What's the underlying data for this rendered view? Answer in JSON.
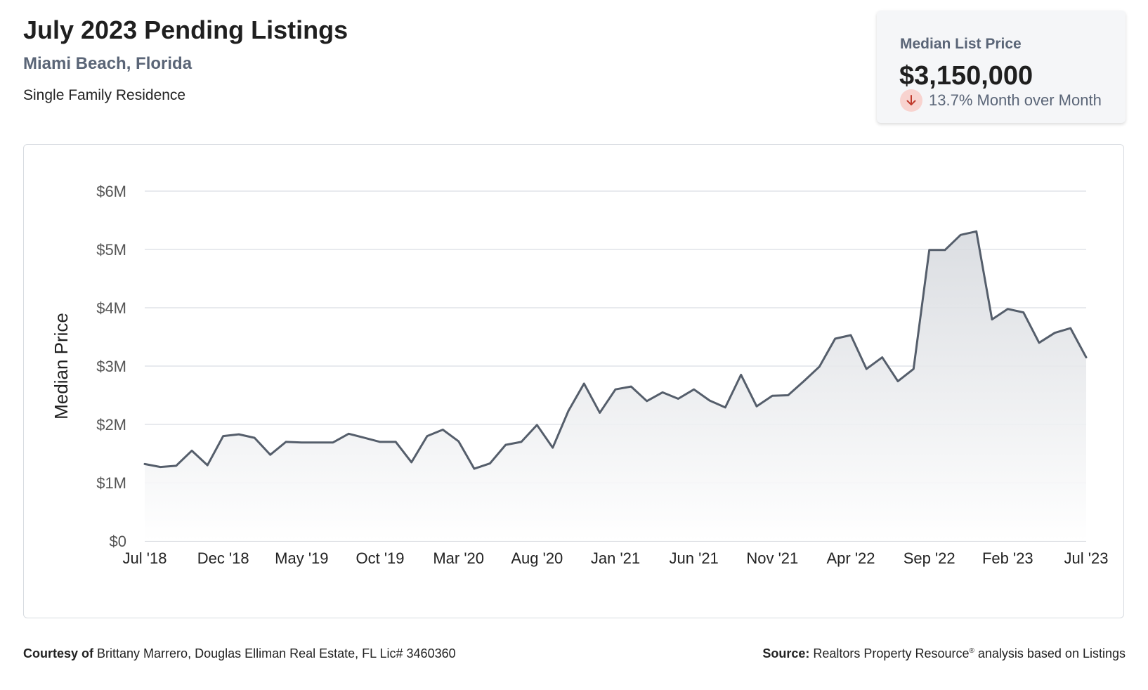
{
  "header": {
    "title": "July 2023 Pending Listings",
    "location": "Miami Beach, Florida",
    "property_type": "Single Family Residence"
  },
  "summary_card": {
    "label": "Median List Price",
    "value": "$3,150,000",
    "change": "13.7% Month over Month",
    "direction_icon": "arrow-down-icon",
    "down_color": "#c0392b"
  },
  "footer": {
    "courtesy_label": "Courtesy of",
    "courtesy_text": "Brittany Marrero, Douglas Elliman Real Estate, FL Lic# 3460360",
    "source_label": "Source:",
    "source_text_1": "Realtors Property Resource",
    "source_reg": "®",
    "source_text_2": " analysis based on Listings"
  },
  "chart_data": {
    "type": "area",
    "title": "",
    "xlabel": "",
    "ylabel": "Median Price",
    "ylim": [
      0,
      6000000
    ],
    "y_ticks": [
      {
        "value": 0,
        "label": "$0"
      },
      {
        "value": 1000000,
        "label": "$1M"
      },
      {
        "value": 2000000,
        "label": "$2M"
      },
      {
        "value": 3000000,
        "label": "$3M"
      },
      {
        "value": 4000000,
        "label": "$4M"
      },
      {
        "value": 5000000,
        "label": "$5M"
      },
      {
        "value": 6000000,
        "label": "$6M"
      }
    ],
    "x_ticks": [
      "Jul '18",
      "Dec '18",
      "May '19",
      "Oct '19",
      "Mar '20",
      "Aug '20",
      "Jan '21",
      "Jun '21",
      "Nov '21",
      "Apr '22",
      "Sep '22",
      "Feb '23",
      "Jul '23"
    ],
    "grid": true,
    "line_color": "#555e6b",
    "series": [
      {
        "x": [
          "Jul '18",
          "Aug '18",
          "Sep '18",
          "Oct '18",
          "Nov '18",
          "Dec '18",
          "Jan '19",
          "Feb '19",
          "Mar '19",
          "Apr '19",
          "May '19",
          "Jun '19",
          "Jul '19",
          "Aug '19",
          "Sep '19",
          "Oct '19",
          "Nov '19",
          "Dec '19",
          "Jan '20",
          "Feb '20",
          "Mar '20",
          "Apr '20",
          "May '20",
          "Jun '20",
          "Jul '20",
          "Aug '20",
          "Sep '20",
          "Oct '20",
          "Nov '20",
          "Dec '20",
          "Jan '21",
          "Feb '21",
          "Mar '21",
          "Apr '21",
          "May '21",
          "Jun '21",
          "Jul '21",
          "Aug '21",
          "Sep '21",
          "Oct '21",
          "Nov '21",
          "Dec '21",
          "Jan '22",
          "Feb '22",
          "Mar '22",
          "Apr '22",
          "May '22",
          "Jun '22",
          "Jul '22",
          "Aug '22",
          "Sep '22",
          "Oct '22",
          "Nov '22",
          "Dec '22",
          "Jan '23",
          "Feb '23",
          "Mar '23",
          "Apr '23",
          "May '23",
          "Jun '23",
          "Jul '23"
        ],
        "values": [
          1320000,
          1270000,
          1290000,
          1550000,
          1300000,
          1800000,
          1830000,
          1770000,
          1480000,
          1700000,
          1690000,
          1690000,
          1690000,
          1840000,
          1770000,
          1700000,
          1700000,
          1350000,
          1800000,
          1910000,
          1710000,
          1240000,
          1330000,
          1650000,
          1700000,
          1990000,
          1600000,
          2230000,
          2700000,
          2200000,
          2600000,
          2650000,
          2400000,
          2550000,
          2440000,
          2600000,
          2410000,
          2290000,
          2850000,
          2310000,
          2490000,
          2500000,
          2740000,
          2990000,
          3470000,
          3530000,
          2950000,
          3150000,
          2740000,
          2950000,
          4990000,
          4990000,
          5250000,
          5310000,
          3800000,
          3980000,
          3920000,
          3400000,
          3570000,
          3650000,
          3150000
        ]
      }
    ]
  }
}
